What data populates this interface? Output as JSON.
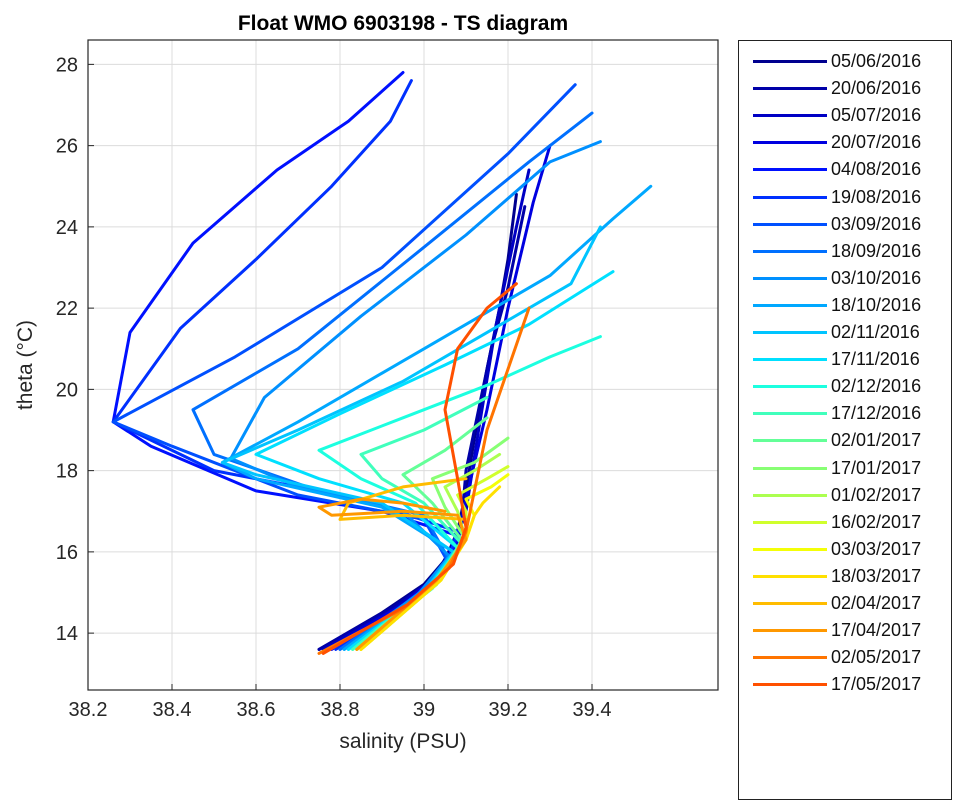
{
  "chart_data": {
    "type": "line",
    "title": "Float WMO 6903198 - TS diagram",
    "xlabel": "salinity (PSU)",
    "ylabel": "theta (°C)",
    "xlim": [
      38.2,
      39.7
    ],
    "ylim": [
      12.6,
      28.6
    ],
    "x_ticks": [
      "38.2",
      "38.4",
      "38.6",
      "38.8",
      "39",
      "39.2",
      "39.4"
    ],
    "y_ticks": [
      "14",
      "16",
      "18",
      "20",
      "22",
      "24",
      "26",
      "28"
    ],
    "grid": true,
    "legend_position": "outside-right",
    "series": [
      {
        "name": "05/06/2016",
        "color": "#00008f",
        "x": [
          38.75,
          38.9,
          39.0,
          39.05,
          39.08,
          39.1,
          39.12,
          39.15,
          39.18,
          39.2,
          39.22
        ],
        "y": [
          13.6,
          14.5,
          15.2,
          15.8,
          16.5,
          17.5,
          18.8,
          20.5,
          22.0,
          23.2,
          24.8
        ]
      },
      {
        "name": "20/06/2016",
        "color": "#0000a8",
        "x": [
          38.75,
          38.92,
          39.02,
          39.06,
          39.09,
          39.1,
          39.13,
          39.16,
          39.2,
          39.24
        ],
        "y": [
          13.6,
          14.6,
          15.3,
          16.0,
          16.8,
          18.0,
          19.5,
          21.0,
          22.5,
          24.5
        ]
      },
      {
        "name": "05/07/2016",
        "color": "#0000c4",
        "x": [
          38.76,
          38.93,
          39.03,
          39.07,
          39.1,
          39.13,
          39.17,
          39.22,
          39.25
        ],
        "y": [
          13.6,
          14.6,
          15.4,
          16.1,
          17.0,
          19.0,
          21.5,
          24.0,
          25.4
        ]
      },
      {
        "name": "20/07/2016",
        "color": "#0000e0",
        "x": [
          38.77,
          38.95,
          39.04,
          39.08,
          39.1,
          39.15,
          39.2,
          39.26,
          39.3
        ],
        "y": [
          13.6,
          14.7,
          15.5,
          16.2,
          17.3,
          19.5,
          22.0,
          24.6,
          26.0
        ]
      },
      {
        "name": "04/08/2016",
        "color": "#0010ff",
        "x": [
          38.78,
          38.96,
          39.05,
          39.08,
          38.9,
          38.6,
          38.35,
          38.26,
          38.3,
          38.45,
          38.65,
          38.82,
          38.95
        ],
        "y": [
          13.6,
          14.7,
          15.5,
          16.4,
          17.0,
          17.5,
          18.6,
          19.2,
          21.4,
          23.6,
          25.4,
          26.6,
          27.8
        ]
      },
      {
        "name": "19/08/2016",
        "color": "#0030ff",
        "x": [
          38.79,
          38.97,
          39.05,
          39.08,
          38.85,
          38.5,
          38.26,
          38.42,
          38.6,
          38.78,
          38.92,
          38.97
        ],
        "y": [
          13.6,
          14.8,
          15.6,
          16.5,
          17.3,
          18.0,
          19.2,
          21.5,
          23.2,
          25.0,
          26.6,
          27.6
        ]
      },
      {
        "name": "03/09/2016",
        "color": "#0050ff",
        "x": [
          38.8,
          38.98,
          39.06,
          39.0,
          38.7,
          38.4,
          38.26,
          38.55,
          38.9,
          39.2,
          39.36
        ],
        "y": [
          13.6,
          14.9,
          15.7,
          16.8,
          17.4,
          18.6,
          19.2,
          20.8,
          23.0,
          25.8,
          27.5
        ]
      },
      {
        "name": "18/09/2016",
        "color": "#0070ff",
        "x": [
          38.8,
          38.98,
          39.06,
          39.0,
          38.75,
          38.5,
          38.45,
          38.7,
          39.0,
          39.25,
          39.4
        ],
        "y": [
          13.6,
          14.9,
          15.8,
          16.9,
          17.5,
          18.4,
          19.5,
          21.0,
          23.5,
          25.6,
          26.8
        ]
      },
      {
        "name": "03/10/2016",
        "color": "#0090ff",
        "x": [
          38.81,
          38.99,
          39.06,
          38.95,
          38.7,
          38.54,
          38.62,
          38.85,
          39.1,
          39.3,
          39.42
        ],
        "y": [
          13.6,
          15.0,
          15.9,
          17.0,
          17.6,
          18.3,
          19.8,
          21.8,
          23.8,
          25.6,
          26.1
        ]
      },
      {
        "name": "18/10/2016",
        "color": "#00a8ff",
        "x": [
          38.81,
          39.0,
          39.07,
          38.9,
          38.6,
          38.52,
          38.7,
          39.0,
          39.3,
          39.45,
          39.54
        ],
        "y": [
          13.6,
          15.0,
          16.0,
          17.1,
          17.8,
          18.2,
          19.2,
          21.0,
          22.8,
          24.2,
          25.0
        ]
      },
      {
        "name": "02/11/2016",
        "color": "#00c4ff",
        "x": [
          38.82,
          39.0,
          39.07,
          38.9,
          38.6,
          38.52,
          38.7,
          38.95,
          39.2,
          39.35,
          39.42
        ],
        "y": [
          13.6,
          15.0,
          16.0,
          17.2,
          17.9,
          18.2,
          19.0,
          20.2,
          21.7,
          22.6,
          24.0
        ]
      },
      {
        "name": "17/11/2016",
        "color": "#00e0ff",
        "x": [
          38.82,
          39.01,
          39.08,
          38.95,
          38.75,
          38.6,
          38.8,
          39.05,
          39.25,
          39.45
        ],
        "y": [
          13.6,
          15.1,
          16.1,
          17.2,
          17.8,
          18.4,
          19.4,
          20.6,
          21.6,
          22.9
        ]
      },
      {
        "name": "02/12/2016",
        "color": "#1cffe0",
        "x": [
          38.83,
          39.02,
          39.08,
          38.98,
          38.85,
          38.75,
          38.95,
          39.15,
          39.3,
          39.42
        ],
        "y": [
          13.6,
          15.1,
          16.1,
          17.2,
          17.8,
          18.5,
          19.3,
          20.1,
          20.8,
          21.3
        ]
      },
      {
        "name": "17/12/2016",
        "color": "#40ffbc",
        "x": [
          38.83,
          39.02,
          39.09,
          39.0,
          38.9,
          38.85,
          39.0,
          39.15
        ],
        "y": [
          13.6,
          15.2,
          16.2,
          17.2,
          17.8,
          18.4,
          19.0,
          19.8
        ]
      },
      {
        "name": "02/01/2017",
        "color": "#64ff98",
        "x": [
          38.84,
          39.03,
          39.09,
          39.02,
          38.95,
          39.05,
          39.15
        ],
        "y": [
          13.6,
          15.2,
          16.3,
          17.2,
          17.9,
          18.5,
          19.3
        ]
      },
      {
        "name": "17/01/2017",
        "color": "#88ff74",
        "x": [
          38.84,
          39.03,
          39.1,
          39.05,
          39.02,
          39.12,
          39.2
        ],
        "y": [
          13.6,
          15.2,
          16.3,
          17.1,
          17.8,
          18.2,
          18.8
        ]
      },
      {
        "name": "01/02/2017",
        "color": "#acff50",
        "x": [
          38.85,
          39.04,
          39.1,
          39.08,
          39.05,
          39.12,
          39.18
        ],
        "y": [
          13.6,
          15.3,
          16.3,
          17.0,
          17.6,
          18.0,
          18.4
        ]
      },
      {
        "name": "16/02/2017",
        "color": "#d0ff2c",
        "x": [
          38.85,
          39.04,
          39.1,
          39.1,
          39.08,
          39.15,
          39.2
        ],
        "y": [
          13.6,
          15.3,
          16.3,
          17.0,
          17.4,
          17.8,
          18.1
        ]
      },
      {
        "name": "03/03/2017",
        "color": "#f4ff08",
        "x": [
          38.85,
          39.04,
          39.1,
          39.12,
          39.1,
          39.16,
          39.2
        ],
        "y": [
          13.6,
          15.3,
          16.3,
          16.9,
          17.3,
          17.6,
          17.9
        ]
      },
      {
        "name": "18/03/2017",
        "color": "#ffe000",
        "x": [
          38.85,
          39.04,
          39.1,
          39.12,
          39.14,
          39.18
        ],
        "y": [
          13.6,
          15.3,
          16.3,
          16.9,
          17.2,
          17.6
        ]
      },
      {
        "name": "02/04/2017",
        "color": "#ffbc00",
        "x": [
          38.84,
          39.03,
          39.1,
          39.1,
          38.95,
          38.8,
          38.82,
          38.95,
          39.1
        ],
        "y": [
          13.6,
          15.3,
          16.3,
          16.8,
          16.9,
          16.8,
          17.2,
          17.6,
          17.8
        ]
      },
      {
        "name": "17/04/2017",
        "color": "#ff9800",
        "x": [
          38.84,
          39.03,
          39.1,
          39.08,
          38.95,
          38.78,
          38.75,
          38.85,
          38.95,
          39.05
        ],
        "y": [
          13.6,
          15.3,
          16.3,
          16.9,
          17.0,
          16.9,
          17.1,
          17.3,
          17.2,
          17.0
        ]
      },
      {
        "name": "02/05/2017",
        "color": "#ff7400",
        "x": [
          38.75,
          38.95,
          39.06,
          39.1,
          39.12,
          39.15,
          39.2,
          39.25
        ],
        "y": [
          13.5,
          14.6,
          15.6,
          16.5,
          17.5,
          19.0,
          20.5,
          22.0
        ]
      },
      {
        "name": "17/05/2017",
        "color": "#ff5000",
        "x": [
          38.76,
          38.96,
          39.07,
          39.1,
          39.08,
          39.05,
          39.08,
          39.15,
          39.22
        ],
        "y": [
          13.5,
          14.7,
          15.7,
          16.6,
          17.8,
          19.5,
          21.0,
          22.0,
          22.6
        ]
      }
    ]
  }
}
